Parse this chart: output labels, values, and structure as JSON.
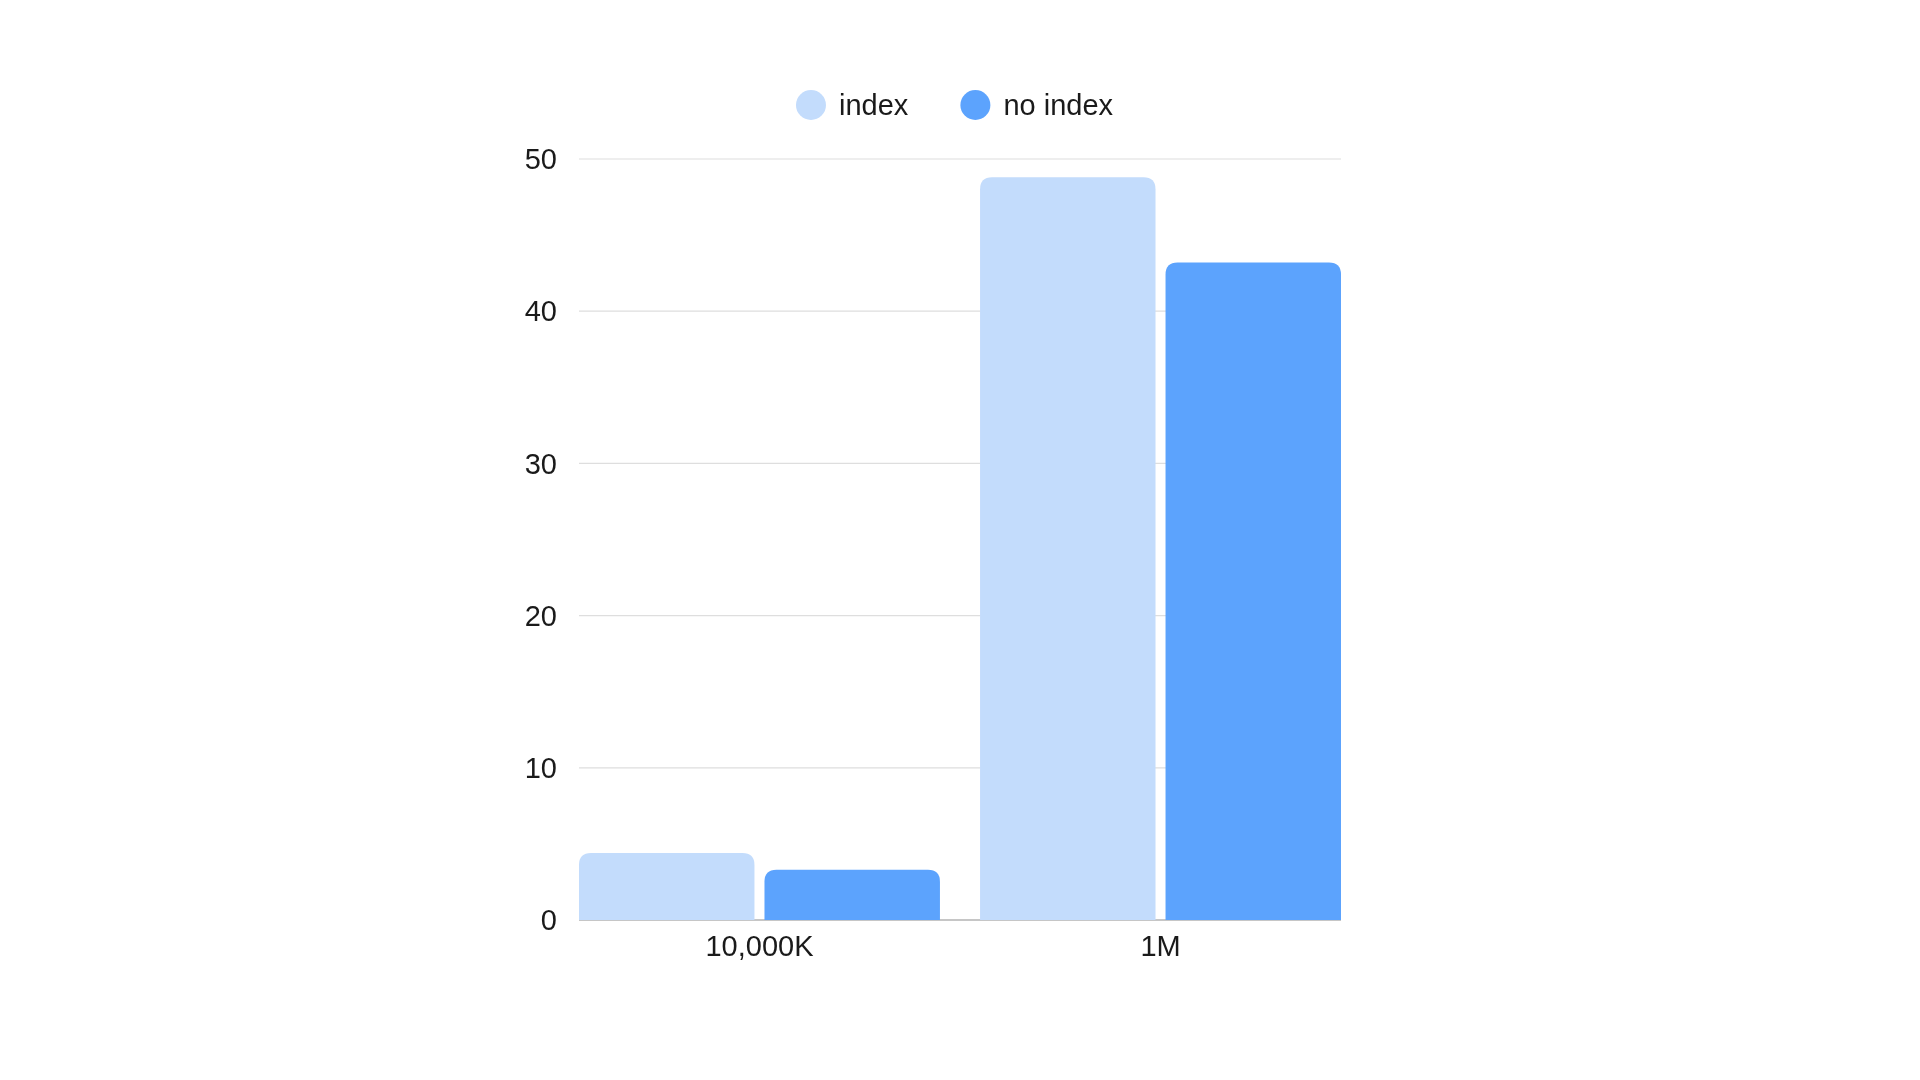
{
  "chart_data": {
    "type": "bar",
    "categories": [
      "10,000K",
      "1M"
    ],
    "series": [
      {
        "name": "index",
        "color": "#c3dcfc",
        "values": [
          4.4,
          48.8
        ]
      },
      {
        "name": "no index",
        "color": "#5ca3fd",
        "values": [
          3.3,
          43.2
        ]
      }
    ],
    "ylim": [
      0,
      50
    ],
    "yticks": [
      0,
      10,
      20,
      30,
      40,
      50
    ],
    "grid": "y",
    "legend": "top"
  }
}
